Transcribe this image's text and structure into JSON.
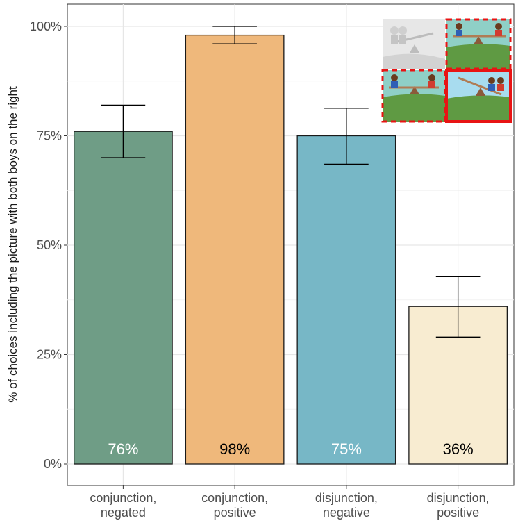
{
  "chart_data": {
    "type": "bar",
    "title": "",
    "xlabel": "",
    "ylabel": "% of choices including the picture with both boys on the right",
    "ylim": [
      0,
      1.05
    ],
    "yticks": [
      0,
      0.25,
      0.5,
      0.75,
      1.0
    ],
    "ytick_labels": [
      "0%",
      "25%",
      "50%",
      "75%",
      "100%"
    ],
    "grid": true,
    "categories": [
      [
        "conjunction,",
        "negated"
      ],
      [
        "conjunction,",
        "positive"
      ],
      [
        "disjunction,",
        "negative"
      ],
      [
        "disjunction,",
        "positive"
      ]
    ],
    "values": [
      0.76,
      0.98,
      0.75,
      0.36
    ],
    "error_low": [
      0.7,
      0.96,
      0.685,
      0.29
    ],
    "error_high": [
      0.82,
      1.0,
      0.813,
      0.428
    ],
    "value_labels": [
      "76%",
      "98%",
      "75%",
      "36%"
    ],
    "bar_colors": [
      "#6f9d86",
      "#efb87b",
      "#77b7c6",
      "#f8ecd1"
    ],
    "label_colors": [
      "#ffffff",
      "#000000",
      "#ffffff",
      "#000000"
    ]
  }
}
